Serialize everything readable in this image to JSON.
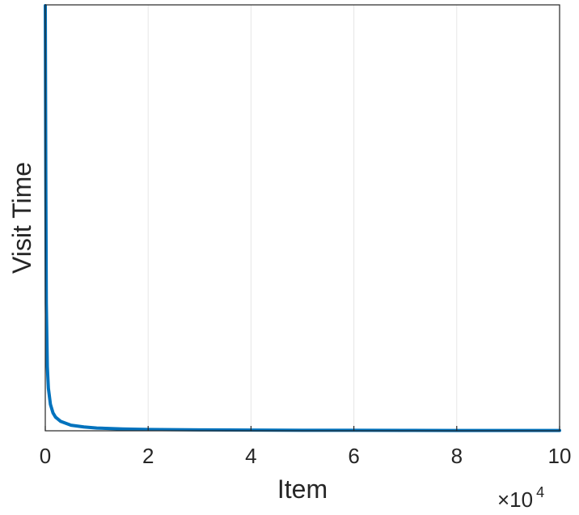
{
  "chart_data": {
    "type": "line",
    "title": "",
    "xlabel": "Item",
    "ylabel": "Visit Time",
    "x_exponent_label": "×10",
    "x_exponent_power": "4",
    "xlim": [
      0,
      10
    ],
    "ylim": [
      0,
      1
    ],
    "y_ticks_shown": false,
    "xticks": [
      0,
      2,
      4,
      6,
      8,
      10
    ],
    "xtick_labels": [
      "0",
      "2",
      "4",
      "6",
      "8",
      "10"
    ],
    "grid": "vertical",
    "legend": "none",
    "series": [
      {
        "color": "#0072BD",
        "x": [
          0,
          0.01,
          0.02,
          0.04,
          0.06,
          0.1,
          0.15,
          0.2,
          0.3,
          0.5,
          0.75,
          1.0,
          1.5,
          2.0,
          3.0,
          4.0,
          5.0,
          6.0,
          7.0,
          8.0,
          9.0,
          10.0
        ],
        "y": [
          0.998,
          0.6,
          0.3,
          0.15,
          0.1,
          0.062,
          0.042,
          0.032,
          0.022,
          0.013,
          0.009,
          0.0065,
          0.0043,
          0.0032,
          0.0021,
          0.0016,
          0.0013,
          0.0011,
          0.0009,
          0.0008,
          0.0007,
          0.0006
        ]
      }
    ]
  },
  "colors": {
    "line": "#0072BD",
    "grid": "#e6e6e6",
    "axis": "#262626"
  }
}
